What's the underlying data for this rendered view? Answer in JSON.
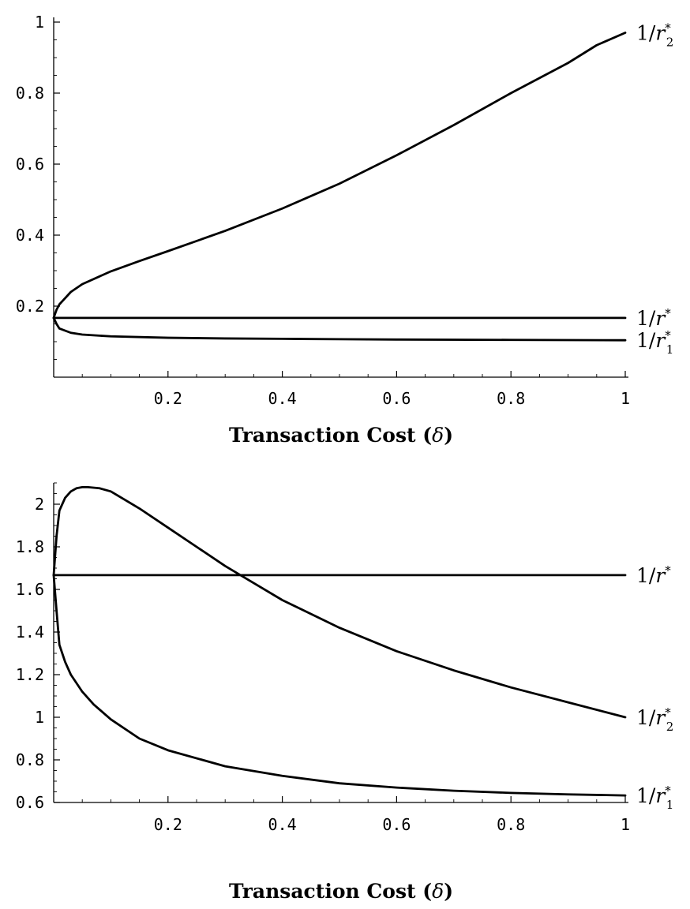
{
  "chart_data": [
    {
      "type": "line",
      "title": "",
      "xlabel": "Transaction Cost",
      "xlabel_symbol": "δ",
      "ylabel": "",
      "xlim": [
        0,
        1
      ],
      "ylim": [
        0,
        1
      ],
      "x_ticks": [
        0.2,
        0.4,
        0.6,
        0.8,
        1
      ],
      "x_tick_labels": [
        "0.2",
        "0.4",
        "0.6",
        "0.8",
        "1"
      ],
      "y_ticks": [
        0.2,
        0.4,
        0.6,
        0.8,
        1
      ],
      "y_tick_labels": [
        "0.2",
        "0.4",
        "0.6",
        "0.8",
        "1"
      ],
      "grid": false,
      "series": [
        {
          "name": "1/r*2",
          "x": [
            0,
            0.005,
            0.01,
            0.03,
            0.05,
            0.1,
            0.15,
            0.2,
            0.3,
            0.4,
            0.5,
            0.6,
            0.7,
            0.8,
            0.9,
            0.95,
            1.0
          ],
          "y": [
            0.167,
            0.19,
            0.205,
            0.24,
            0.262,
            0.298,
            0.327,
            0.355,
            0.412,
            0.475,
            0.545,
            0.625,
            0.71,
            0.8,
            0.885,
            0.935,
            0.97
          ]
        },
        {
          "name": "1/r*",
          "x": [
            0,
            1.0
          ],
          "y": [
            0.167,
            0.167
          ]
        },
        {
          "name": "1/r*1",
          "x": [
            0,
            0.005,
            0.01,
            0.03,
            0.05,
            0.1,
            0.2,
            0.3,
            0.4,
            0.5,
            0.6,
            0.8,
            1.0
          ],
          "y": [
            0.167,
            0.15,
            0.137,
            0.125,
            0.12,
            0.115,
            0.111,
            0.109,
            0.108,
            0.107,
            0.106,
            0.105,
            0.104
          ]
        }
      ]
    },
    {
      "type": "line",
      "title": "",
      "xlabel": "Transaction Cost",
      "xlabel_symbol": "δ",
      "ylabel": "",
      "xlim": [
        0,
        1
      ],
      "ylim": [
        0.6,
        2.1
      ],
      "x_ticks": [
        0.2,
        0.4,
        0.6,
        0.8,
        1
      ],
      "x_tick_labels": [
        "0.2",
        "0.4",
        "0.6",
        "0.8",
        "1"
      ],
      "y_ticks": [
        0.6,
        0.8,
        1,
        1.2,
        1.4,
        1.6,
        1.8,
        2
      ],
      "y_tick_labels": [
        "0.6",
        "0.8",
        "1",
        "1.2",
        "1.4",
        "1.6",
        "1.8",
        "2"
      ],
      "grid": false,
      "series": [
        {
          "name": "1/r*",
          "x": [
            0,
            1.0
          ],
          "y": [
            1.667,
            1.667
          ]
        },
        {
          "name": "1/r*2",
          "x": [
            0,
            0.005,
            0.01,
            0.015,
            0.02,
            0.03,
            0.04,
            0.05,
            0.06,
            0.08,
            0.1,
            0.15,
            0.2,
            0.25,
            0.3,
            0.35,
            0.4,
            0.5,
            0.6,
            0.7,
            0.8,
            0.9,
            1.0
          ],
          "y": [
            1.667,
            1.85,
            1.97,
            2.0,
            2.03,
            2.06,
            2.075,
            2.08,
            2.08,
            2.075,
            2.06,
            1.98,
            1.89,
            1.8,
            1.71,
            1.63,
            1.55,
            1.42,
            1.31,
            1.22,
            1.14,
            1.07,
            1.0
          ]
        },
        {
          "name": "1/r*1",
          "x": [
            0,
            0.005,
            0.01,
            0.015,
            0.02,
            0.03,
            0.05,
            0.07,
            0.1,
            0.15,
            0.2,
            0.3,
            0.4,
            0.5,
            0.6,
            0.7,
            0.8,
            0.9,
            1.0
          ],
          "y": [
            1.667,
            1.5,
            1.34,
            1.3,
            1.26,
            1.2,
            1.12,
            1.06,
            0.99,
            0.9,
            0.845,
            0.77,
            0.725,
            0.69,
            0.67,
            0.655,
            0.645,
            0.638,
            0.633
          ]
        }
      ]
    }
  ]
}
